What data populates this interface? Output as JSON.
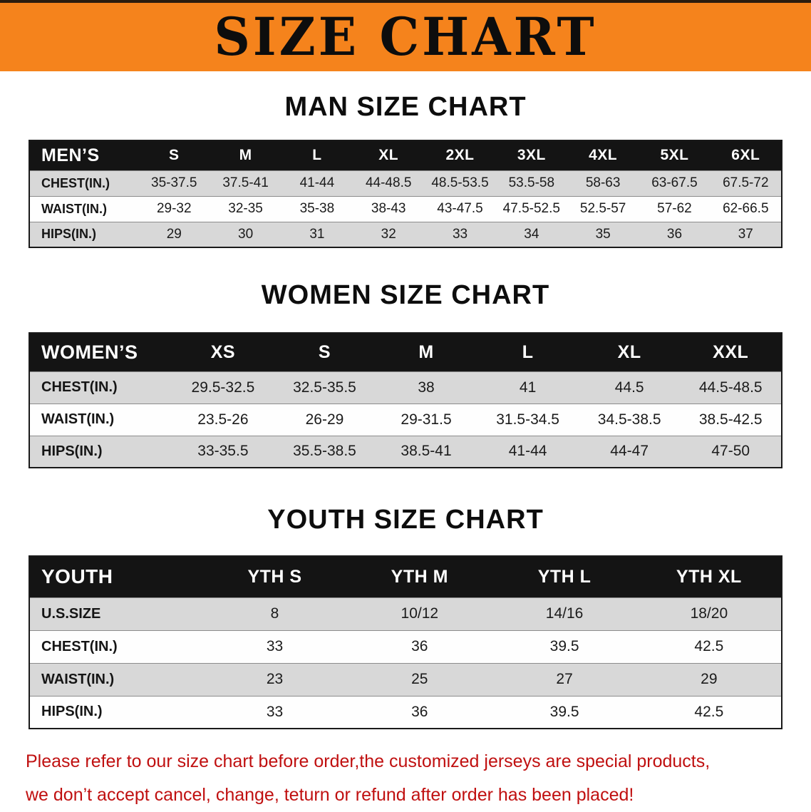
{
  "banner": {
    "title": "SIZE CHART"
  },
  "sections": [
    {
      "heading": "MAN SIZE CHART",
      "table": {
        "header": [
          "MEN’S",
          "S",
          "M",
          "L",
          "XL",
          "2XL",
          "3XL",
          "4XL",
          "5XL",
          "6XL"
        ],
        "rows": [
          [
            "CHEST(IN.)",
            "35-37.5",
            "37.5-41",
            "41-44",
            "44-48.5",
            "48.5-53.5",
            "53.5-58",
            "58-63",
            "63-67.5",
            "67.5-72"
          ],
          [
            "WAIST(IN.)",
            "29-32",
            "32-35",
            "35-38",
            "38-43",
            "43-47.5",
            "47.5-52.5",
            "52.5-57",
            "57-62",
            "62-66.5"
          ],
          [
            "HIPS(IN.)",
            "29",
            "30",
            "31",
            "32",
            "33",
            "34",
            "35",
            "36",
            "37"
          ]
        ]
      }
    },
    {
      "heading": "WOMEN SIZE CHART",
      "table": {
        "header": [
          "WOMEN’S",
          "XS",
          "S",
          "M",
          "L",
          "XL",
          "XXL"
        ],
        "rows": [
          [
            "CHEST(IN.)",
            "29.5-32.5",
            "32.5-35.5",
            "38",
            "41",
            "44.5",
            "44.5-48.5"
          ],
          [
            "WAIST(IN.)",
            "23.5-26",
            "26-29",
            "29-31.5",
            "31.5-34.5",
            "34.5-38.5",
            "38.5-42.5"
          ],
          [
            "HIPS(IN.)",
            "33-35.5",
            "35.5-38.5",
            "38.5-41",
            "41-44",
            "44-47",
            "47-50"
          ]
        ]
      }
    },
    {
      "heading": "YOUTH SIZE CHART",
      "table": {
        "header": [
          "YOUTH",
          "YTH S",
          "YTH M",
          "YTH L",
          "YTH XL"
        ],
        "rows": [
          [
            "U.S.SIZE",
            "8",
            "10/12",
            "14/16",
            "18/20"
          ],
          [
            "CHEST(IN.)",
            "33",
            "36",
            "39.5",
            "42.5"
          ],
          [
            "WAIST(IN.)",
            "23",
            "25",
            "27",
            "29"
          ],
          [
            "HIPS(IN.)",
            "33",
            "36",
            "39.5",
            "42.5"
          ]
        ]
      }
    }
  ],
  "disclaimer": {
    "lines": [
      "Please refer to our size chart before order,the customized jerseys are special products,",
      "we don’t accept cancel, change, teturn or refund after order has been placed!"
    ]
  },
  "colors": {
    "banner_orange": "#F5831C",
    "header_black": "#141414",
    "row_gray": "#D8D8D8",
    "disclaimer_red": "#C01010"
  }
}
